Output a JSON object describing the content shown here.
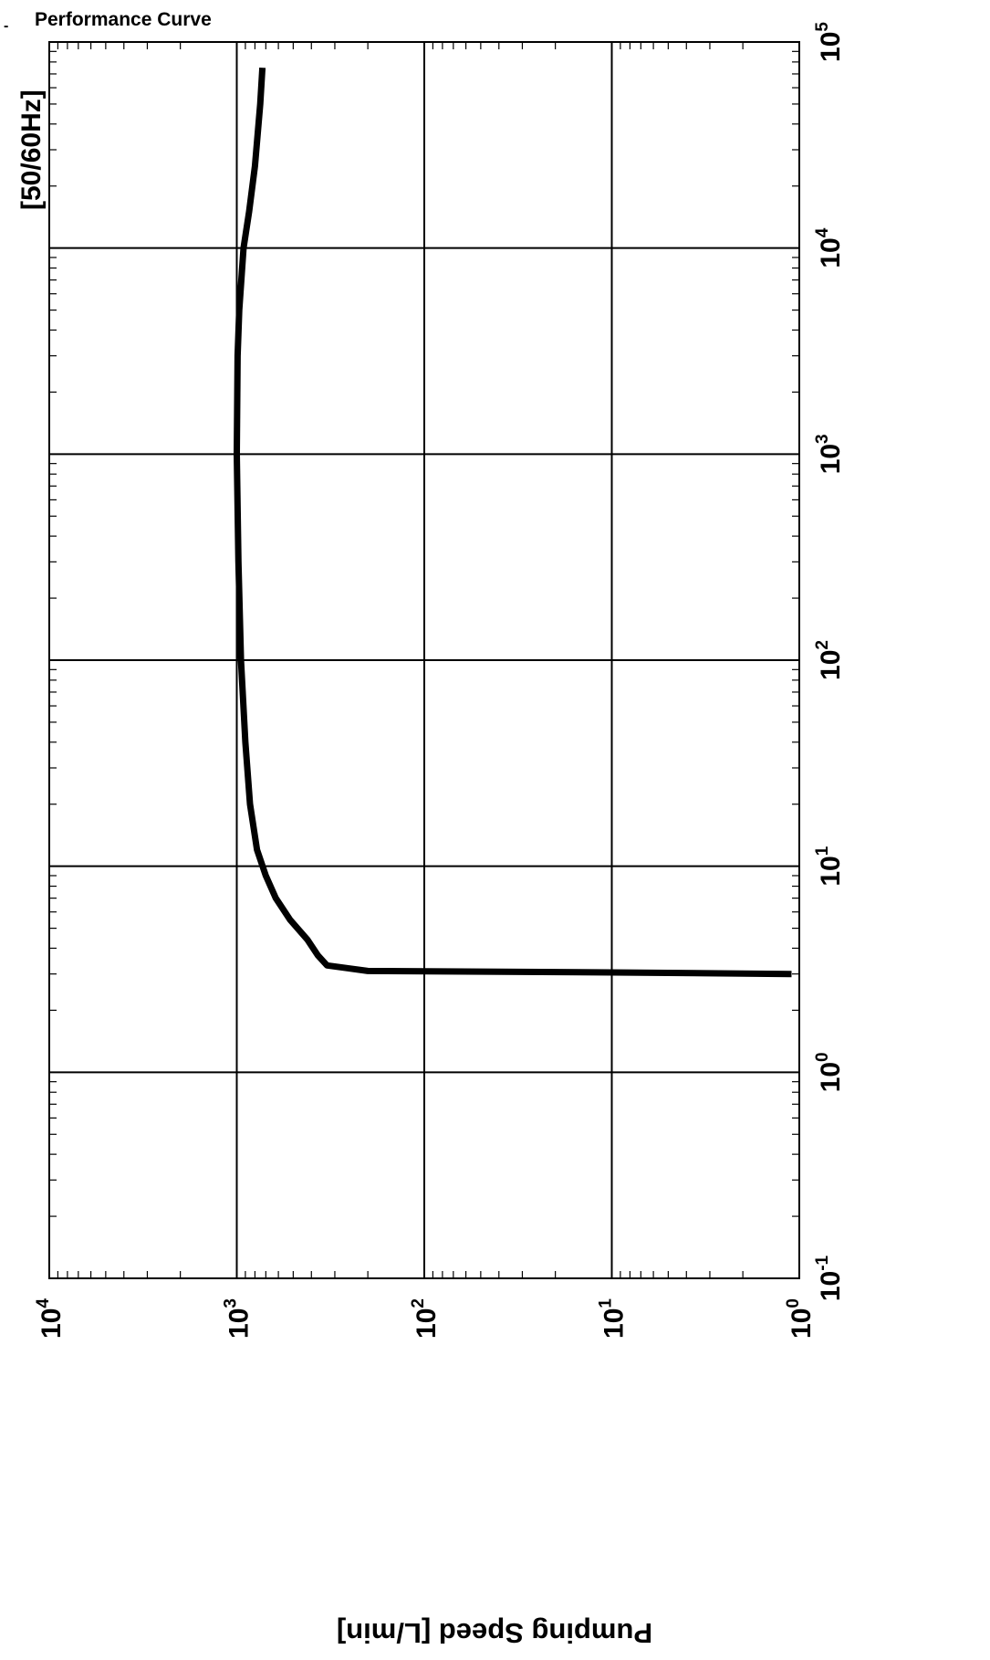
{
  "header": {
    "title": "Performance Curve",
    "frequency_label": "[50/60Hz]"
  },
  "chart_data": {
    "type": "line",
    "title": "Performance Curve",
    "ylabel": "Pumping Speed [L/min]",
    "xlabel": "",
    "x_scale": "log",
    "y_scale": "log",
    "xlim": [
      0.1,
      100000
    ],
    "ylim": [
      1,
      10000
    ],
    "grid": true,
    "x_ticks": [
      {
        "base": "10",
        "exp": "-1",
        "value": 0.1
      },
      {
        "base": "10",
        "exp": "0",
        "value": 1
      },
      {
        "base": "10",
        "exp": "1",
        "value": 10
      },
      {
        "base": "10",
        "exp": "2",
        "value": 100
      },
      {
        "base": "10",
        "exp": "3",
        "value": 1000
      },
      {
        "base": "10",
        "exp": "4",
        "value": 10000
      },
      {
        "base": "10",
        "exp": "5",
        "value": 100000
      }
    ],
    "y_ticks": [
      {
        "base": "10",
        "exp": "0",
        "value": 1
      },
      {
        "base": "10",
        "exp": "1",
        "value": 10
      },
      {
        "base": "10",
        "exp": "2",
        "value": 100
      },
      {
        "base": "10",
        "exp": "3",
        "value": 1000
      },
      {
        "base": "10",
        "exp": "4",
        "value": 10000
      }
    ],
    "series": [
      {
        "color": "#000000",
        "x": [
          3.0,
          3.05,
          3.1,
          3.3,
          3.7,
          4.4,
          5.5,
          7.0,
          9.0,
          12.0,
          20.0,
          40.0,
          100.0,
          300.0,
          1000.0,
          3000.0,
          5000.0,
          10000.0,
          15000.0,
          25000.0,
          50000.0,
          75000.0
        ],
        "y": [
          1.1,
          10,
          200,
          330,
          370,
          420,
          520,
          620,
          700,
          780,
          850,
          900,
          950,
          980,
          1000,
          990,
          970,
          920,
          860,
          800,
          750,
          730
        ]
      }
    ]
  }
}
